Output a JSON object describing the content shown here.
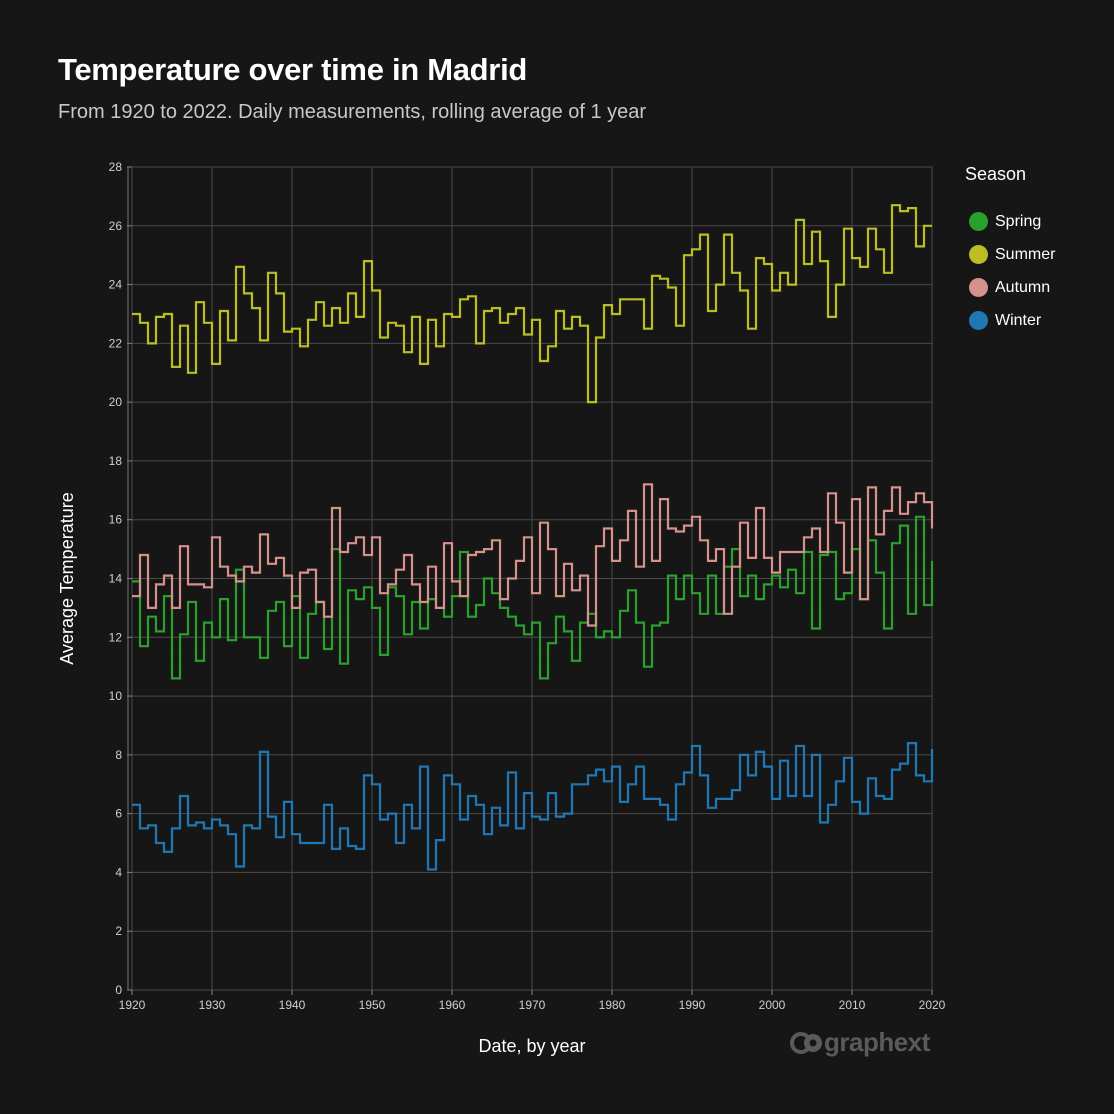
{
  "header": {
    "title": "Temperature over time in Madrid",
    "subtitle": "From 1920 to 2022. Daily measurements, rolling average of 1 year"
  },
  "legend": {
    "title": "Season",
    "items": [
      {
        "label": "Spring",
        "color": "#2ca02c"
      },
      {
        "label": "Summer",
        "color": "#bcbd22"
      },
      {
        "label": "Autumn",
        "color": "#d6918a"
      },
      {
        "label": "Winter",
        "color": "#1f77b4"
      }
    ]
  },
  "watermark": {
    "text": "graphext",
    "icon": "graphext-logo-icon"
  },
  "chart_data": {
    "type": "line",
    "step": true,
    "title": "Temperature over time in Madrid",
    "subtitle": "From 1920 to 2022. Daily measurements, rolling average of 1 year",
    "xlabel": "Date, by year",
    "ylabel": "Average Temperature",
    "xlim": [
      1920,
      2020
    ],
    "ylim": [
      0,
      28
    ],
    "xticks": [
      "1920",
      "1930",
      "1940",
      "1950",
      "1960",
      "1970",
      "1980",
      "1990",
      "2000",
      "2010",
      "2020"
    ],
    "yticks": [
      "0",
      "2",
      "4",
      "6",
      "8",
      "10",
      "12",
      "14",
      "16",
      "18",
      "20",
      "22",
      "24",
      "26",
      "28"
    ],
    "grid": true,
    "legend_position": "right",
    "x": [
      1920,
      1921,
      1922,
      1923,
      1924,
      1925,
      1926,
      1927,
      1928,
      1929,
      1930,
      1931,
      1932,
      1933,
      1934,
      1935,
      1936,
      1937,
      1938,
      1939,
      1940,
      1941,
      1942,
      1943,
      1944,
      1945,
      1946,
      1947,
      1948,
      1949,
      1950,
      1951,
      1952,
      1953,
      1954,
      1955,
      1956,
      1957,
      1958,
      1959,
      1960,
      1961,
      1962,
      1963,
      1964,
      1965,
      1966,
      1967,
      1968,
      1969,
      1970,
      1971,
      1972,
      1973,
      1974,
      1975,
      1976,
      1977,
      1978,
      1979,
      1980,
      1981,
      1982,
      1983,
      1984,
      1985,
      1986,
      1987,
      1988,
      1989,
      1990,
      1991,
      1992,
      1993,
      1994,
      1995,
      1996,
      1997,
      1998,
      1999,
      2000,
      2001,
      2002,
      2003,
      2004,
      2005,
      2006,
      2007,
      2008,
      2009,
      2010,
      2011,
      2012,
      2013,
      2014,
      2015,
      2016,
      2017,
      2018,
      2019,
      2020
    ],
    "series": [
      {
        "name": "Spring",
        "color": "#2ca02c",
        "values": [
          13.9,
          11.7,
          12.7,
          12.2,
          13.4,
          10.6,
          12.1,
          13.2,
          11.2,
          12.5,
          12.0,
          13.3,
          11.9,
          14.3,
          12.0,
          12.0,
          11.3,
          12.9,
          13.2,
          11.7,
          13.4,
          11.3,
          12.8,
          13.2,
          11.6,
          15.0,
          11.1,
          13.6,
          13.3,
          13.7,
          13.0,
          11.4,
          13.7,
          13.4,
          12.1,
          13.2,
          12.3,
          13.3,
          13.0,
          12.7,
          13.4,
          14.9,
          12.7,
          13.1,
          14.0,
          13.5,
          13.0,
          12.7,
          12.4,
          12.1,
          12.5,
          10.6,
          11.8,
          12.7,
          12.2,
          11.2,
          12.5,
          12.8,
          12.0,
          12.2,
          12.0,
          12.9,
          13.6,
          12.5,
          11.0,
          12.4,
          12.5,
          14.1,
          13.3,
          14.1,
          13.5,
          12.8,
          14.1,
          12.8,
          14.4,
          15.0,
          13.4,
          14.1,
          13.3,
          13.8,
          14.1,
          13.7,
          14.3,
          13.5,
          14.9,
          12.3,
          14.8,
          14.9,
          13.3,
          13.5,
          15.0,
          13.3,
          15.3,
          14.2,
          12.3,
          15.2,
          15.8,
          12.8,
          16.1,
          13.1,
          14.6
        ]
      },
      {
        "name": "Summer",
        "color": "#bcbd22",
        "values": [
          23.0,
          22.7,
          22.0,
          22.9,
          23.0,
          21.2,
          22.6,
          21.0,
          23.4,
          22.7,
          21.3,
          23.1,
          22.1,
          24.6,
          23.7,
          23.2,
          22.1,
          24.4,
          23.7,
          22.4,
          22.5,
          21.9,
          22.8,
          23.4,
          22.6,
          23.2,
          22.7,
          23.7,
          22.9,
          24.8,
          23.8,
          22.2,
          22.7,
          22.6,
          21.7,
          22.9,
          21.3,
          22.8,
          21.9,
          23.0,
          22.9,
          23.5,
          23.6,
          22.0,
          23.1,
          23.2,
          22.7,
          23.0,
          23.2,
          22.3,
          22.8,
          21.4,
          21.9,
          23.1,
          22.5,
          22.9,
          22.6,
          20.0,
          22.2,
          23.3,
          23.0,
          23.5,
          23.5,
          23.5,
          22.5,
          24.3,
          24.2,
          23.9,
          22.6,
          25.0,
          25.2,
          25.7,
          23.1,
          24.0,
          25.7,
          24.4,
          23.8,
          22.5,
          24.9,
          24.7,
          23.8,
          24.4,
          24.0,
          26.2,
          24.7,
          25.8,
          24.8,
          22.9,
          24.0,
          25.9,
          24.9,
          24.6,
          25.9,
          25.2,
          24.4,
          26.7,
          26.5,
          26.6,
          25.3,
          26.0,
          26.0
        ]
      },
      {
        "name": "Autumn",
        "color": "#d6918a",
        "values": [
          13.4,
          14.8,
          13.0,
          13.8,
          14.1,
          13.0,
          15.1,
          13.8,
          13.8,
          13.7,
          15.4,
          14.4,
          14.1,
          13.9,
          14.4,
          14.2,
          15.5,
          14.5,
          14.7,
          14.1,
          13.0,
          14.2,
          14.3,
          13.2,
          12.7,
          16.4,
          14.9,
          15.2,
          15.4,
          14.8,
          15.4,
          13.5,
          13.8,
          14.3,
          14.8,
          13.8,
          13.2,
          14.4,
          13.0,
          15.2,
          13.9,
          13.4,
          14.8,
          14.9,
          15.0,
          15.3,
          13.3,
          14.0,
          14.6,
          15.4,
          13.5,
          15.9,
          15.0,
          13.4,
          14.5,
          13.6,
          14.1,
          12.4,
          15.1,
          15.7,
          14.6,
          15.3,
          16.3,
          14.4,
          17.2,
          14.6,
          16.7,
          15.7,
          15.6,
          15.8,
          16.1,
          15.3,
          14.6,
          15.0,
          12.8,
          14.4,
          15.9,
          14.7,
          16.4,
          14.7,
          14.2,
          14.9,
          14.9,
          14.9,
          15.4,
          15.7,
          14.9,
          16.9,
          15.9,
          14.2,
          16.7,
          13.3,
          17.1,
          15.5,
          16.3,
          17.1,
          16.2,
          16.6,
          16.9,
          16.6,
          15.7
        ]
      },
      {
        "name": "Winter",
        "color": "#1f77b4",
        "values": [
          6.3,
          5.5,
          5.6,
          5.0,
          4.7,
          5.5,
          6.6,
          5.6,
          5.7,
          5.5,
          5.8,
          5.6,
          5.3,
          4.2,
          5.6,
          5.5,
          8.1,
          5.9,
          5.2,
          6.4,
          5.3,
          5.0,
          5.0,
          5.0,
          6.3,
          4.8,
          5.5,
          4.9,
          4.8,
          7.3,
          7.0,
          5.8,
          6.0,
          5.0,
          6.3,
          5.5,
          7.6,
          4.1,
          5.1,
          7.3,
          7.0,
          5.8,
          6.6,
          6.3,
          5.3,
          6.2,
          5.6,
          7.4,
          5.5,
          6.7,
          5.9,
          5.8,
          6.7,
          5.9,
          6.0,
          7.0,
          7.0,
          7.3,
          7.5,
          7.1,
          7.6,
          6.4,
          7.0,
          7.6,
          6.5,
          6.5,
          6.3,
          5.8,
          7.0,
          7.4,
          8.3,
          7.3,
          6.2,
          6.5,
          6.5,
          6.8,
          8.0,
          7.3,
          8.1,
          7.6,
          6.5,
          7.8,
          6.6,
          8.3,
          6.6,
          8.0,
          5.7,
          6.3,
          7.1,
          7.9,
          6.4,
          6.0,
          7.2,
          6.6,
          6.5,
          7.5,
          7.7,
          8.4,
          7.3,
          7.1,
          8.2
        ]
      }
    ]
  }
}
